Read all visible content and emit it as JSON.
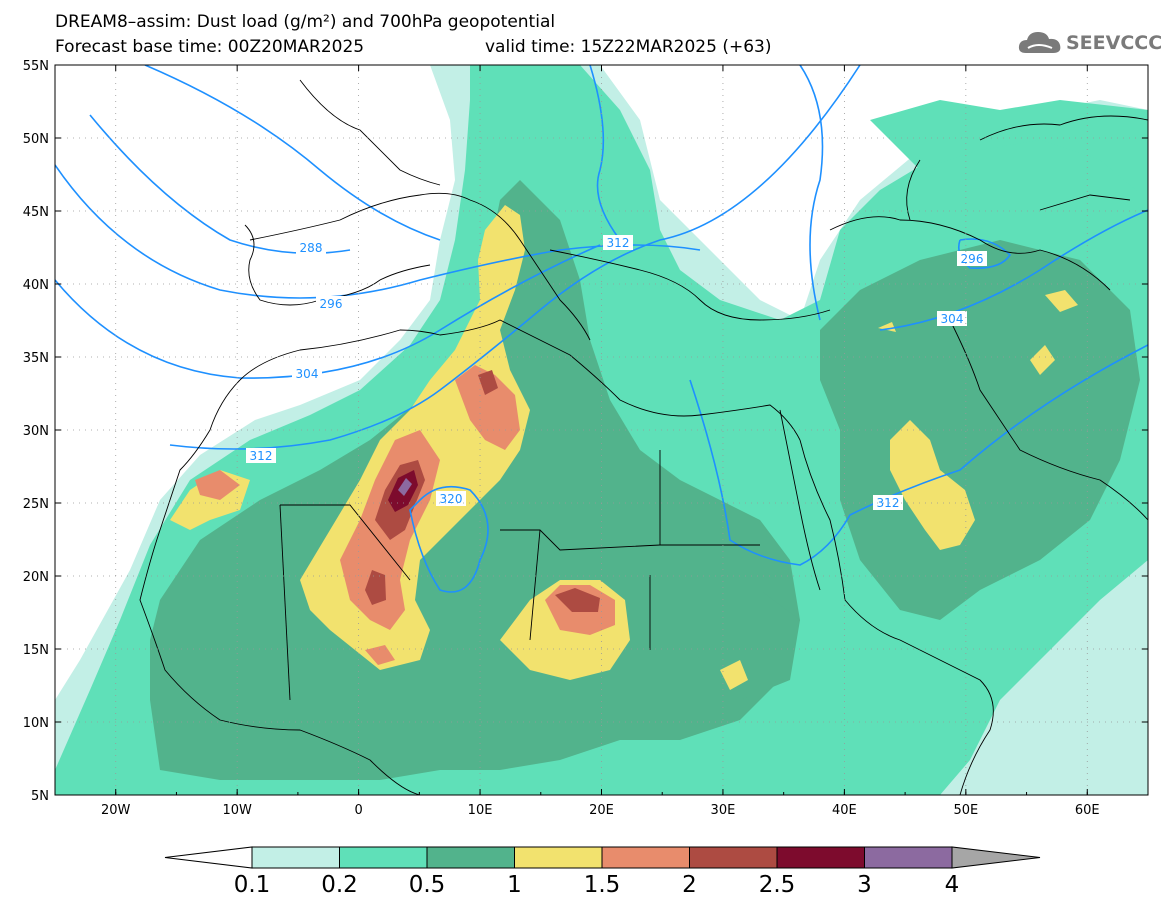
{
  "title": {
    "line1": "DREAM8–assim: Dust load (g/m²) and 700hPa geopotential",
    "line2": "Forecast base time: 00Z20MAR2025",
    "line3": "valid time: 15Z22MAR2025 (+63)"
  },
  "logo": {
    "text": "SEEVCCC",
    "icon": "cloud-icon"
  },
  "map": {
    "lon_range": [
      -25,
      65
    ],
    "lat_range": [
      5,
      55
    ],
    "lat_labels": [
      "55N",
      "50N",
      "45N",
      "40N",
      "35N",
      "30N",
      "25N",
      "20N",
      "15N",
      "10N",
      "5N"
    ],
    "lon_labels": [
      "20W",
      "10W",
      "0",
      "10E",
      "20E",
      "30E",
      "40E",
      "50E",
      "60E"
    ],
    "grid": true
  },
  "contours": {
    "field": "700hPa geopotential",
    "labels": [
      "288",
      "296",
      "304",
      "312",
      "312",
      "320",
      "296",
      "304",
      "312"
    ]
  },
  "colorbar": {
    "ticks": [
      "0.1",
      "0.2",
      "0.5",
      "1",
      "1.5",
      "2",
      "2.5",
      "3",
      "4"
    ],
    "colors": [
      "#c2efe6",
      "#5fe0b8",
      "#52b38c",
      "#f2e26e",
      "#e88c6c",
      "#ad4b42",
      "#7d0b2d",
      "#8c6aa0"
    ],
    "under_color": "#ffffff",
    "over_color": "#a6a6a6"
  }
}
